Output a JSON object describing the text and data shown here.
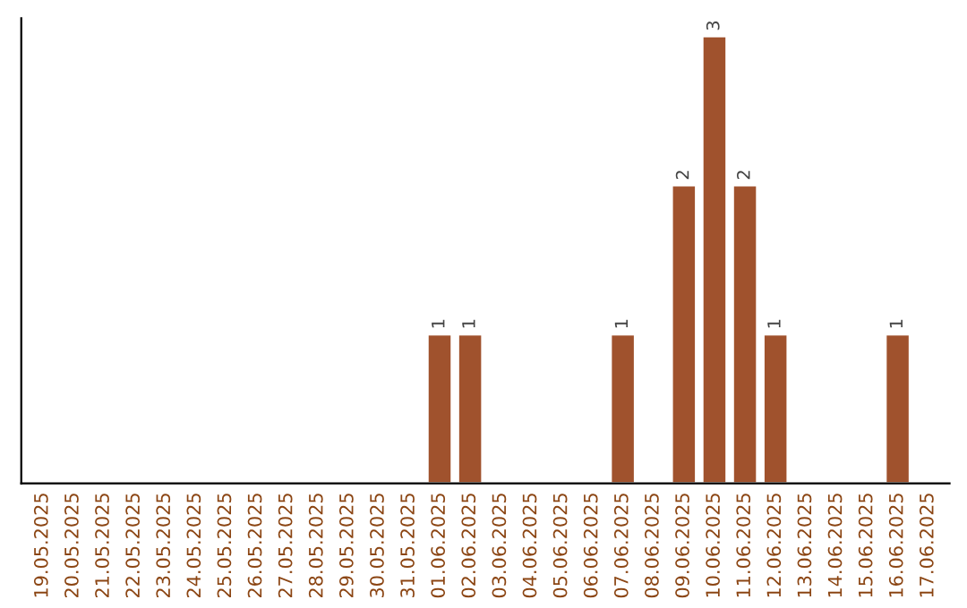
{
  "chart_data": {
    "type": "bar",
    "categories": [
      "19.05.2025",
      "20.05.2025",
      "21.05.2025",
      "22.05.2025",
      "23.05.2025",
      "24.05.2025",
      "25.05.2025",
      "26.05.2025",
      "27.05.2025",
      "28.05.2025",
      "29.05.2025",
      "30.05.2025",
      "31.05.2025",
      "01.06.2025",
      "02.06.2025",
      "03.06.2025",
      "04.06.2025",
      "05.06.2025",
      "06.06.2025",
      "07.06.2025",
      "08.06.2025",
      "09.06.2025",
      "10.06.2025",
      "11.06.2025",
      "12.06.2025",
      "13.06.2025",
      "14.06.2025",
      "15.06.2025",
      "16.06.2025",
      "17.06.2025"
    ],
    "values": [
      null,
      null,
      null,
      null,
      null,
      null,
      null,
      null,
      null,
      null,
      null,
      null,
      null,
      1,
      1,
      null,
      null,
      null,
      null,
      1,
      null,
      2,
      3,
      2,
      1,
      null,
      null,
      null,
      1,
      null
    ],
    "value_labels": [
      null,
      null,
      null,
      null,
      null,
      null,
      null,
      null,
      null,
      null,
      null,
      null,
      null,
      "1",
      "1",
      null,
      null,
      null,
      null,
      "1",
      null,
      "2",
      "3",
      "2",
      "1",
      null,
      null,
      null,
      "1",
      null
    ],
    "color": "#a0522d",
    "grid": false,
    "legend": false,
    "tick_labels": "x"
  }
}
